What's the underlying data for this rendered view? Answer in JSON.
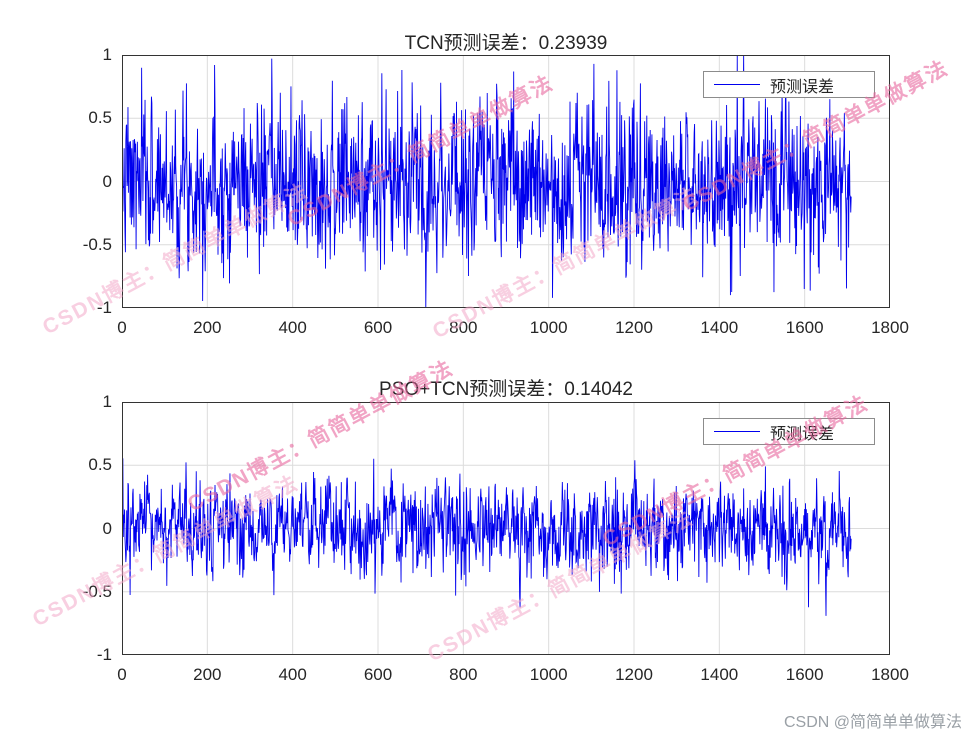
{
  "figure": {
    "background": "#ffffff"
  },
  "chart_data": [
    {
      "type": "line",
      "title": "TCN预测误差：0.23939",
      "error_value": 0.23939,
      "xlabel": "",
      "ylabel": "",
      "xlim": [
        0,
        1800
      ],
      "ylim": [
        -1,
        1
      ],
      "xticks": [
        0,
        200,
        400,
        600,
        800,
        1000,
        1200,
        1400,
        1600,
        1800
      ],
      "yticks": [
        1,
        0.5,
        0,
        -0.5,
        -1
      ],
      "ytick_labels": [
        "1",
        "0.5",
        "0",
        "-0.5",
        "-1"
      ],
      "grid": true,
      "grid_color": "#dcdcdc",
      "axis_color": "#333333",
      "legend": {
        "label": "预测误差",
        "position": "top-right"
      },
      "series": [
        {
          "name": "预测误差",
          "color": "#0000ee",
          "n_points": 1710,
          "sigma": 0.3,
          "clip": 1.0,
          "autocorr": 0.25,
          "seed": 7
        }
      ]
    },
    {
      "type": "line",
      "title": "PSO+TCN预测误差：0.14042",
      "error_value": 0.14042,
      "xlabel": "",
      "ylabel": "",
      "xlim": [
        0,
        1800
      ],
      "ylim": [
        -1,
        1
      ],
      "xticks": [
        0,
        200,
        400,
        600,
        800,
        1000,
        1200,
        1400,
        1600,
        1800
      ],
      "yticks": [
        1,
        0.5,
        0,
        -0.5,
        -1
      ],
      "ytick_labels": [
        "1",
        "0.5",
        "0",
        "-0.5",
        "-1"
      ],
      "grid": true,
      "grid_color": "#dcdcdc",
      "axis_color": "#333333",
      "legend": {
        "label": "预测误差",
        "position": "top-right"
      },
      "series": [
        {
          "name": "预测误差",
          "color": "#0000ee",
          "n_points": 1710,
          "sigma": 0.175,
          "clip": 0.72,
          "autocorr": 0.3,
          "seed": 13
        }
      ]
    }
  ],
  "watermark": {
    "text": "CSDN博主：简简单单做算法"
  },
  "credit": "CSDN @简简单单做算法"
}
